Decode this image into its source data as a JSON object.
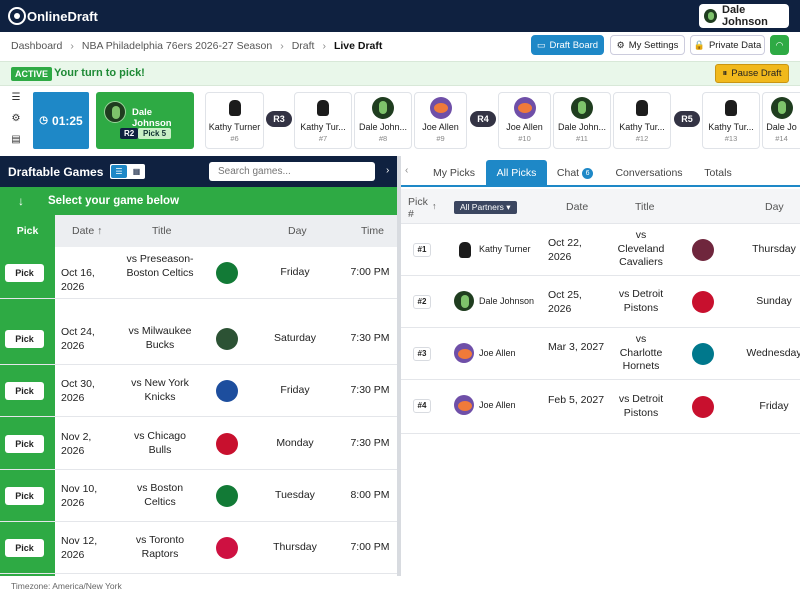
{
  "app": {
    "logo_text": "OnlineDraft",
    "user_name": "Dale Johnson"
  },
  "breadcrumb": [
    "Dashboard",
    "NBA Philadelphia 76ers 2026-27 Season",
    "Draft",
    "Live Draft"
  ],
  "header_buttons": {
    "draft_board": "Draft Board",
    "my_settings": "My Settings",
    "private_data": "Private Data"
  },
  "status": {
    "badge": "ACTIVE",
    "message": "Your turn to pick!",
    "pause_label": "Pause Draft"
  },
  "timer": "01:25",
  "current_pick": {
    "name": "Dale Johnson",
    "round": "R2",
    "pick": "Pick 5"
  },
  "ticker": [
    {
      "name": "Kathy Turner",
      "number": "#6",
      "avatar": "dog"
    },
    {
      "round": "R3"
    },
    {
      "name": "Kathy Tur...",
      "number": "#7",
      "avatar": "dog"
    },
    {
      "name": "Dale John...",
      "number": "#8",
      "avatar": "green"
    },
    {
      "name": "Joe Allen",
      "number": "#9",
      "avatar": "joe"
    },
    {
      "round": "R4"
    },
    {
      "name": "Joe Allen",
      "number": "#10",
      "avatar": "joe"
    },
    {
      "name": "Dale John...",
      "number": "#11",
      "avatar": "green"
    },
    {
      "name": "Kathy Tur...",
      "number": "#12",
      "avatar": "dog"
    },
    {
      "round": "R5"
    },
    {
      "name": "Kathy Tur...",
      "number": "#13",
      "avatar": "dog"
    },
    {
      "name": "Dale Jo",
      "number": "#14",
      "avatar": "green"
    }
  ],
  "left_panel": {
    "title": "Draftable Games",
    "search_placeholder": "Search games...",
    "select_prompt": "Select your game below",
    "columns": {
      "pick": "Pick",
      "date": "Date ↑",
      "title": "Title",
      "day": "Day",
      "time": "Time"
    },
    "pick_label": "Pick",
    "games": [
      {
        "date": "Oct 16, 2026",
        "title": "vs Preseason-Boston Celtics",
        "day": "Friday",
        "time": "7:00 PM",
        "color": "#127a36"
      },
      {
        "date": "Oct 24, 2026",
        "title": "vs Milwaukee Bucks",
        "day": "Saturday",
        "time": "7:30 PM",
        "color": "#2c5234"
      },
      {
        "date": "Oct 30, 2026",
        "title": "vs New York Knicks",
        "day": "Friday",
        "time": "7:30 PM",
        "color": "#1d4e9e"
      },
      {
        "date": "Nov 2, 2026",
        "title": "vs Chicago Bulls",
        "day": "Monday",
        "time": "7:30 PM",
        "color": "#c8102e"
      },
      {
        "date": "Nov 10, 2026",
        "title": "vs Boston Celtics",
        "day": "Tuesday",
        "time": "8:00 PM",
        "color": "#127a36"
      },
      {
        "date": "Nov 12, 2026",
        "title": "vs Toronto Raptors",
        "day": "Thursday",
        "time": "7:00 PM",
        "color": "#ce1141"
      }
    ],
    "timezone": "Timezone: America/New York"
  },
  "right_panel": {
    "tabs": [
      {
        "label": "My Picks"
      },
      {
        "label": "All Picks"
      },
      {
        "label": "Chat",
        "badge": "6"
      },
      {
        "label": "Conversations"
      },
      {
        "label": "Totals"
      }
    ],
    "columns": {
      "pick": "Pick #",
      "partners": "All Partners",
      "date": "Date",
      "title": "Title",
      "day": "Day"
    },
    "picks": [
      {
        "no": "#1",
        "name": "Kathy Turner",
        "avatar": "dog",
        "date": "Oct 22, 2026",
        "title": "vs Cleveland Cavaliers",
        "day": "Thursday",
        "color": "#6f263d"
      },
      {
        "no": "#2",
        "name": "Dale Johnson",
        "avatar": "green",
        "date": "Oct 25, 2026",
        "title": "vs Detroit Pistons",
        "day": "Sunday",
        "color": "#c8102e"
      },
      {
        "no": "#3",
        "name": "Joe Allen",
        "avatar": "joe",
        "date": "Mar 3, 2027",
        "title": "vs Charlotte Hornets",
        "day": "Wednesday",
        "color": "#00788c"
      },
      {
        "no": "#4",
        "name": "Joe Allen",
        "avatar": "joe",
        "date": "Feb 5, 2027",
        "title": "vs Detroit Pistons",
        "day": "Friday",
        "color": "#c8102e"
      }
    ]
  }
}
